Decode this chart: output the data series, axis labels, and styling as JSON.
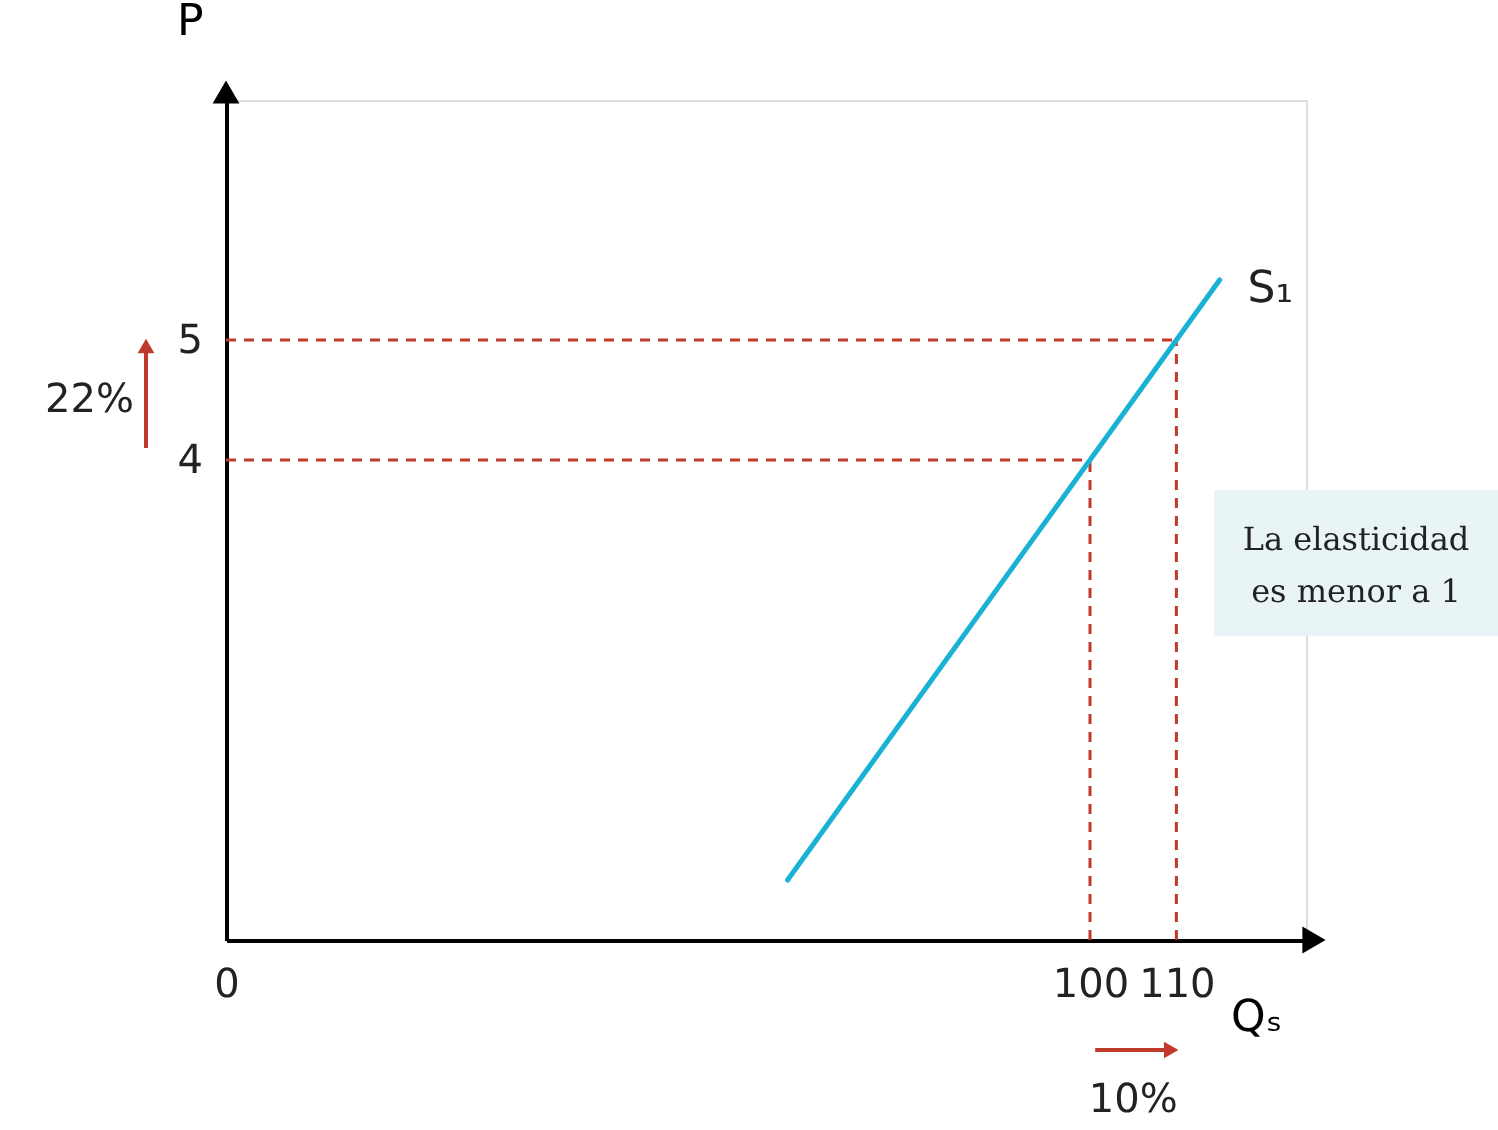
{
  "chart_data": {
    "type": "line",
    "xlabel": "Qₛ",
    "ylabel": "P",
    "xlim": [
      0,
      125
    ],
    "ylim": [
      0,
      7
    ],
    "xticks": [
      0,
      100,
      110
    ],
    "yticks": [
      4,
      5
    ],
    "grid": false,
    "series": [
      {
        "name": "S₁",
        "color": "#1ab2d4",
        "x": [
          65,
          115
        ],
        "values": [
          0.5,
          5.5
        ]
      }
    ],
    "ref_lines": [
      {
        "axis": "x",
        "value": 100,
        "color": "#c0392b",
        "line_style": "dashed"
      },
      {
        "axis": "x",
        "value": 110,
        "color": "#c0392b",
        "line_style": "dashed"
      },
      {
        "axis": "y",
        "value": 4,
        "color": "#c0392b",
        "line_style": "dashed"
      },
      {
        "axis": "y",
        "value": 5,
        "color": "#c0392b",
        "line_style": "dashed"
      }
    ],
    "annotations": [
      "22%",
      "10%",
      "La elasticidad\nes menor a 1"
    ]
  }
}
